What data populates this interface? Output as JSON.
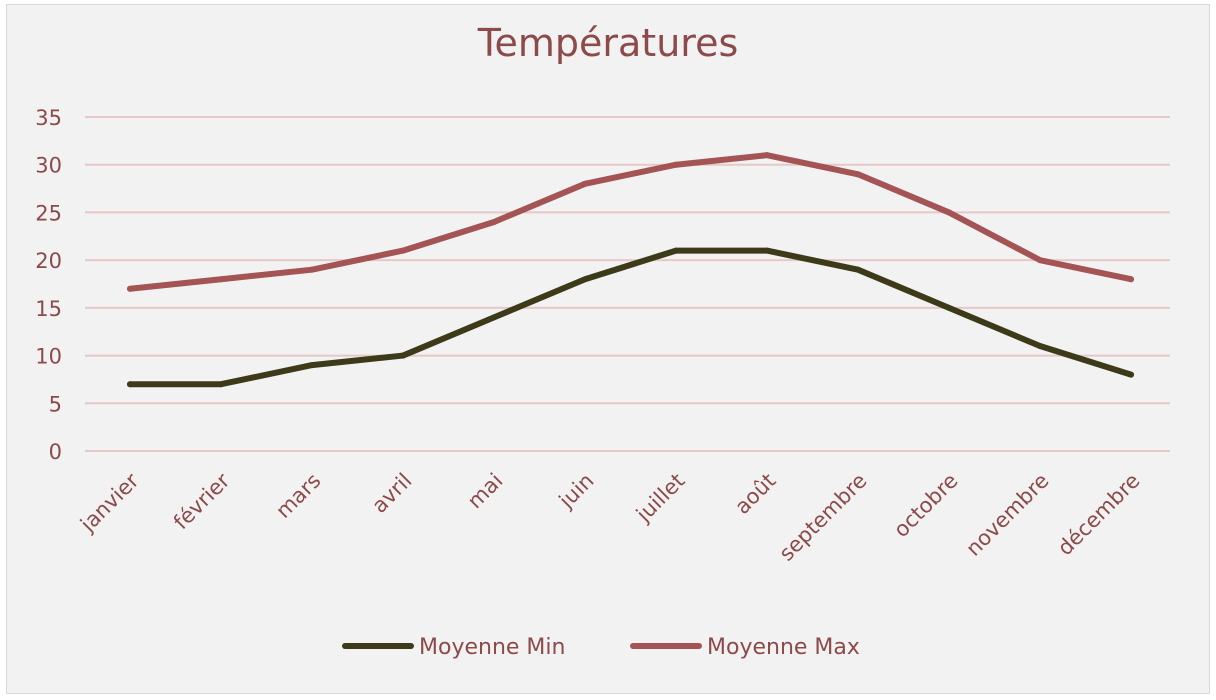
{
  "colors": {
    "background": "#f2f2f2",
    "text": "#8c4a4a",
    "gridline": "#e6c8c8",
    "series_min": "#3d3a1a",
    "series_max": "#a45454"
  },
  "chart_data": {
    "type": "line",
    "title": "Températures",
    "xlabel": "",
    "ylabel": "",
    "ylim": [
      0,
      35
    ],
    "yticks": [
      0,
      5,
      10,
      15,
      20,
      25,
      30,
      35
    ],
    "grid": true,
    "legend_position": "bottom",
    "categories": [
      "janvier",
      "février",
      "mars",
      "avril",
      "mai",
      "juin",
      "juillet",
      "août",
      "septembre",
      "octobre",
      "novembre",
      "décembre"
    ],
    "series": [
      {
        "name": "Moyenne Min",
        "color": "#3d3a1a",
        "values": [
          7,
          7,
          9,
          10,
          14,
          18,
          21,
          21,
          19,
          15,
          11,
          8
        ]
      },
      {
        "name": "Moyenne Max",
        "color": "#a45454",
        "values": [
          17,
          18,
          19,
          21,
          24,
          28,
          30,
          31,
          29,
          25,
          20,
          18
        ]
      }
    ]
  }
}
